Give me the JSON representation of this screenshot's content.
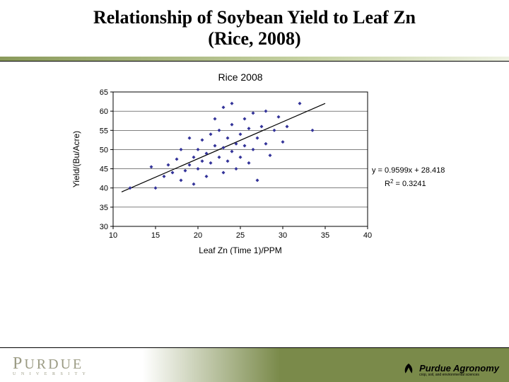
{
  "slide": {
    "title_line1": "Relationship of Soybean Yield to Leaf Zn",
    "title_line2": "(Rice, 2008)",
    "title_fontsize": 26,
    "title_font": "Times New Roman",
    "accent_gradient": [
      "#8a9a5b",
      "#c5d1a1",
      "#eef2e2"
    ]
  },
  "chart": {
    "type": "scatter-with-trendline",
    "title": "Rice 2008",
    "title_fontsize": 14,
    "xlabel": "Leaf Zn (Time 1)/PPM",
    "ylabel": "Yield/(Bu/Acre)",
    "label_fontsize": 12,
    "tick_fontsize": 11,
    "xlim": [
      10,
      40
    ],
    "ylim": [
      30,
      65
    ],
    "xtick_step": 5,
    "ytick_step": 5,
    "background_color": "#ffffff",
    "axis_color": "#000000",
    "grid_color": "#000000",
    "grid_width": 0.5,
    "marker_color": "#333399",
    "marker_size": 5,
    "marker_shape": "diamond",
    "trend_color": "#000000",
    "trend_width": 1.2,
    "trend_slope": 0.9599,
    "trend_intercept": 28.418,
    "eq_line1": "y = 0.9599x + 28.418",
    "eq_line2_prefix": "R",
    "eq_line2_sup": "2",
    "eq_line2_rest": " = 0.3241",
    "points": [
      [
        12.0,
        40.0
      ],
      [
        14.5,
        45.5
      ],
      [
        15.0,
        40.0
      ],
      [
        16.0,
        43.0
      ],
      [
        16.5,
        46.0
      ],
      [
        17.0,
        44.0
      ],
      [
        17.5,
        47.5
      ],
      [
        18.0,
        42.0
      ],
      [
        18.0,
        50.0
      ],
      [
        18.5,
        44.5
      ],
      [
        19.0,
        46.0
      ],
      [
        19.0,
        53.0
      ],
      [
        19.5,
        48.0
      ],
      [
        19.5,
        41.0
      ],
      [
        20.0,
        45.0
      ],
      [
        20.0,
        50.0
      ],
      [
        20.5,
        47.0
      ],
      [
        20.5,
        52.5
      ],
      [
        21.0,
        43.0
      ],
      [
        21.0,
        49.0
      ],
      [
        21.5,
        54.0
      ],
      [
        21.5,
        46.5
      ],
      [
        22.0,
        51.0
      ],
      [
        22.0,
        58.0
      ],
      [
        22.5,
        48.0
      ],
      [
        22.5,
        55.0
      ],
      [
        23.0,
        44.0
      ],
      [
        23.0,
        50.5
      ],
      [
        23.0,
        61.0
      ],
      [
        23.5,
        47.0
      ],
      [
        23.5,
        53.0
      ],
      [
        24.0,
        56.5
      ],
      [
        24.0,
        62.0
      ],
      [
        24.0,
        49.5
      ],
      [
        24.5,
        51.5
      ],
      [
        24.5,
        45.0
      ],
      [
        25.0,
        54.0
      ],
      [
        25.0,
        48.0
      ],
      [
        25.5,
        58.0
      ],
      [
        25.5,
        51.0
      ],
      [
        26.0,
        46.5
      ],
      [
        26.0,
        55.5
      ],
      [
        26.5,
        50.0
      ],
      [
        26.5,
        59.5
      ],
      [
        27.0,
        53.0
      ],
      [
        27.0,
        42.0
      ],
      [
        27.5,
        56.0
      ],
      [
        28.0,
        51.5
      ],
      [
        28.0,
        60.0
      ],
      [
        28.5,
        48.5
      ],
      [
        29.0,
        55.0
      ],
      [
        29.5,
        58.5
      ],
      [
        30.0,
        52.0
      ],
      [
        30.5,
        56.0
      ],
      [
        32.0,
        62.0
      ],
      [
        33.5,
        55.0
      ]
    ]
  },
  "footer": {
    "left_brand": "PURDUE",
    "left_brand_first": "P",
    "left_brand_rest": "URDUE",
    "left_sub": "U N I V E R S I T Y",
    "right_brand": "Purdue Agronomy",
    "right_sub": "crop, soil, and environmental sciences",
    "bar_gradient": [
      "#ffffff",
      "#7a8a4a"
    ]
  }
}
